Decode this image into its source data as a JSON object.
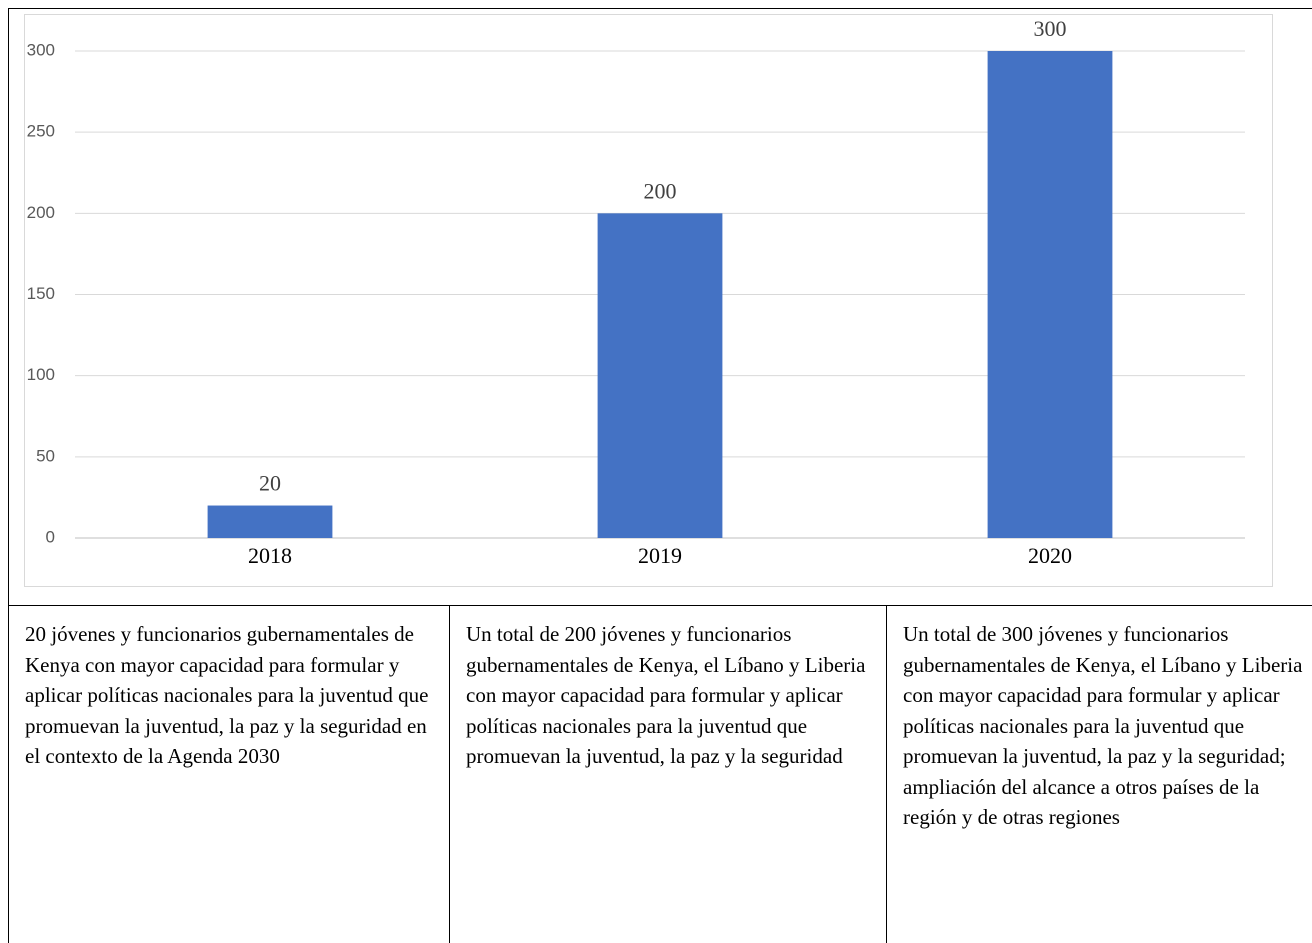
{
  "chart_data": {
    "type": "bar",
    "categories": [
      "2018",
      "2019",
      "2020"
    ],
    "values": [
      20,
      200,
      300
    ],
    "color": "#4472c4",
    "ylim": [
      0,
      300
    ],
    "yticks": [
      0,
      50,
      100,
      150,
      200,
      250,
      300
    ],
    "grid": true,
    "data_labels": true
  },
  "table": {
    "cells": [
      "20 jóvenes y funcionarios gubernamentales de Kenya con mayor capacidad para formular y aplicar políticas nacionales para la juventud que promuevan la juventud, la paz y la seguridad en el contexto de la Agenda 2030",
      "Un total de 200 jóvenes y funcionarios gubernamentales de Kenya, el Líbano y Liberia con mayor capacidad para formular y aplicar políticas nacionales para la juventud que promuevan la juventud, la paz y la seguridad",
      "Un total de 300 jóvenes y funcionarios gubernamentales de Kenya, el Líbano y Liberia con mayor capacidad para formular y aplicar políticas nacionales para la juventud que promuevan la juventud, la paz y la seguridad; ampliación del alcance a otros países de la región y de otras regiones"
    ]
  }
}
